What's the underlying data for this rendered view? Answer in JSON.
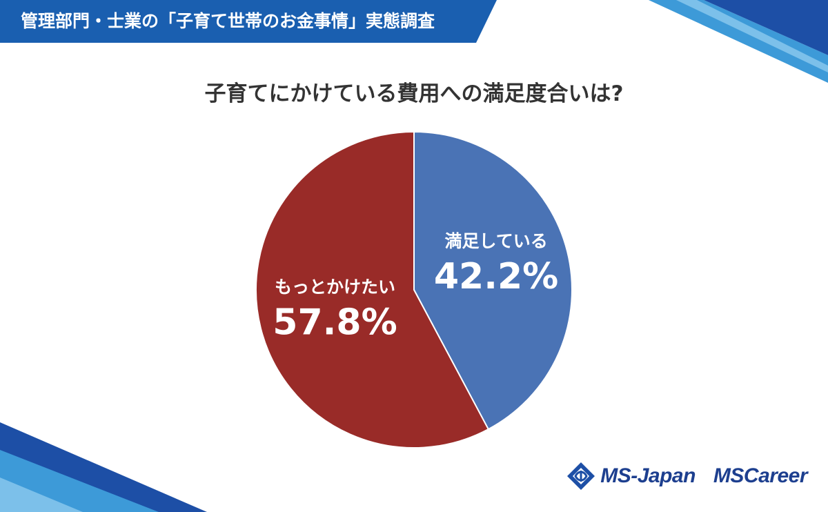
{
  "header": {
    "title": "管理部門・士業の「子育て世帯のお金事情」実態調査"
  },
  "chart_data": {
    "type": "pie",
    "title": "子育てにかけている費用への満足度合いは?",
    "slices": [
      {
        "label": "満足している",
        "value": 42.2,
        "display": "42.2%",
        "color": "#4a73b5"
      },
      {
        "label": "もっとかけたい",
        "value": 57.8,
        "display": "57.8%",
        "color": "#992b28"
      }
    ]
  },
  "logos": {
    "ms_japan": "MS-Japan",
    "ms_career": "MSCareer"
  },
  "colors": {
    "accent": "#1a5fb0",
    "accent_dark": "#14479a",
    "light_blue": "#3d9ad8"
  }
}
